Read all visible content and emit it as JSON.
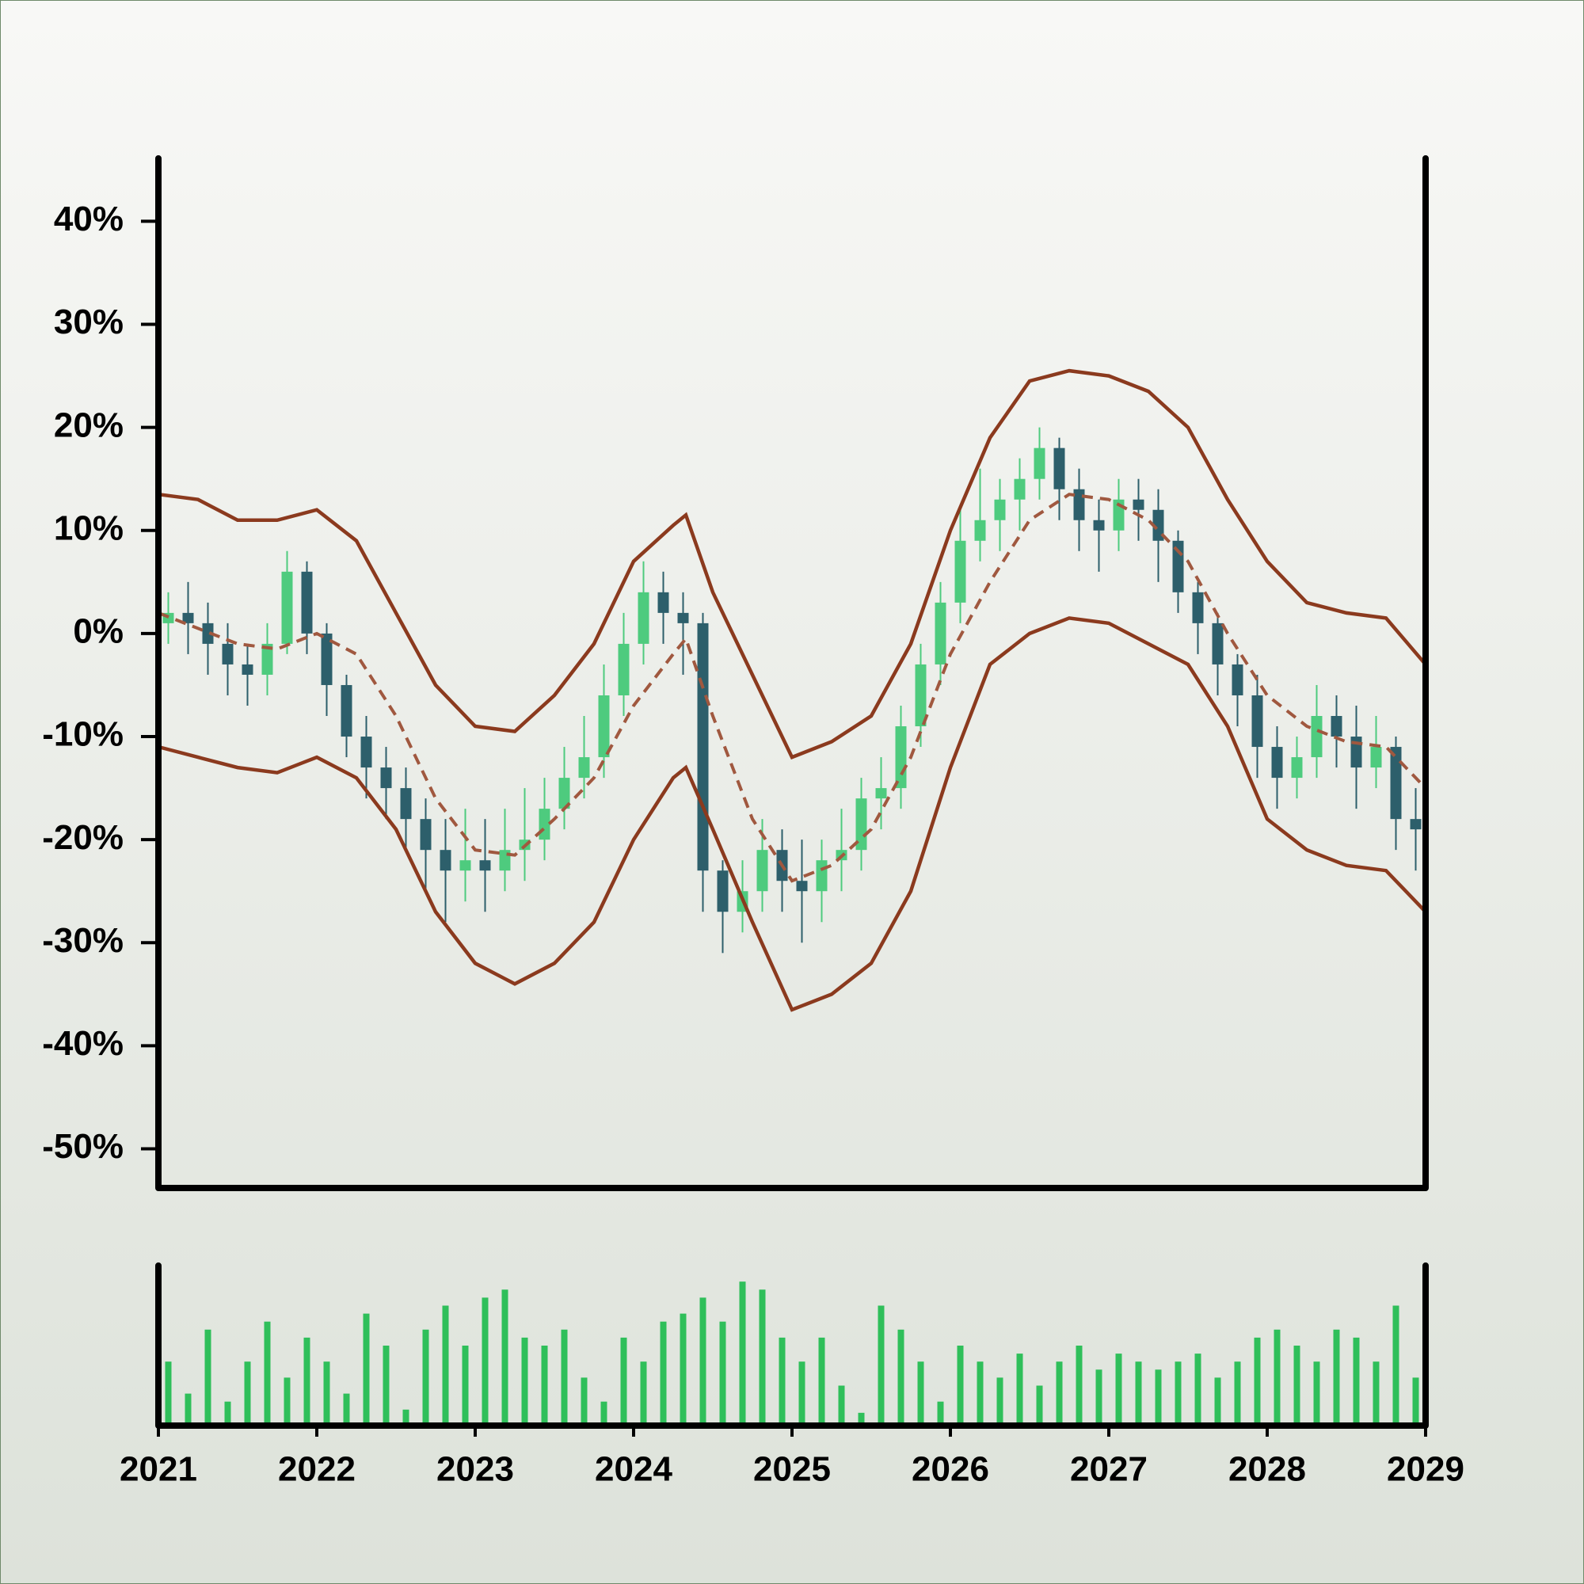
{
  "chart_data": [
    {
      "type": "candlestick",
      "x": [
        2021.0625,
        2021.1875,
        2021.3125,
        2021.4375,
        2021.5625,
        2021.6875,
        2021.8125,
        2021.9375,
        2022.0625,
        2022.1875,
        2022.3125,
        2022.4375,
        2022.5625,
        2022.6875,
        2022.8125,
        2022.9375,
        2023.0625,
        2023.1875,
        2023.3125,
        2023.4375,
        2023.5625,
        2023.6875,
        2023.8125,
        2023.9375,
        2024.0625,
        2024.1875,
        2024.3125,
        2024.4375,
        2024.5625,
        2024.6875,
        2024.8125,
        2024.9375,
        2025.0625,
        2025.1875,
        2025.3125,
        2025.4375,
        2025.5625,
        2025.6875,
        2025.8125,
        2025.9375,
        2026.0625,
        2026.1875,
        2026.3125,
        2026.4375,
        2026.5625,
        2026.6875,
        2026.8125,
        2026.9375,
        2027.0625,
        2027.1875,
        2027.3125,
        2027.4375,
        2027.5625,
        2027.6875,
        2027.8125,
        2027.9375,
        2028.0625,
        2028.1875,
        2028.3125,
        2028.4375,
        2028.5625,
        2028.6875,
        2028.8125,
        2028.9375
      ],
      "open": [
        1,
        2,
        1,
        -1,
        -3,
        -4,
        -1,
        6,
        0,
        -5,
        -10,
        -13,
        -15,
        -18,
        -21,
        -23,
        -22,
        -23,
        -21,
        -20,
        -17,
        -14,
        -12,
        -6,
        -1,
        4,
        2,
        1,
        -23,
        -27,
        -25,
        -21,
        -24,
        -25,
        -22,
        -21,
        -16,
        -15,
        -9,
        -3,
        3,
        9,
        11,
        13,
        15,
        18,
        14,
        11,
        10,
        13,
        12,
        9,
        4,
        1,
        -3,
        -6,
        -11,
        -14,
        -12,
        -8,
        -10,
        -13,
        -11,
        -18
      ],
      "high": [
        4,
        5,
        3,
        1,
        -1,
        1,
        8,
        7,
        1,
        -4,
        -8,
        -11,
        -13,
        -16,
        -18,
        -17,
        -18,
        -17,
        -15,
        -14,
        -11,
        -8,
        -3,
        2,
        7,
        6,
        4,
        2,
        -22,
        -22,
        -18,
        -19,
        -20,
        -20,
        -17,
        -14,
        -12,
        -7,
        -1,
        5,
        12,
        16,
        15,
        17,
        20,
        19,
        16,
        13,
        15,
        15,
        14,
        10,
        5,
        2,
        -2,
        -4,
        -9,
        -10,
        -5,
        -6,
        -7,
        -8,
        -10,
        -15
      ],
      "low": [
        -1,
        -2,
        -4,
        -6,
        -7,
        -6,
        -2,
        -2,
        -8,
        -12,
        -16,
        -18,
        -21,
        -25,
        -28,
        -26,
        -27,
        -25,
        -24,
        -22,
        -19,
        -16,
        -14,
        -8,
        -3,
        -1,
        -4,
        -27,
        -31,
        -29,
        -27,
        -27,
        -30,
        -28,
        -25,
        -23,
        -19,
        -17,
        -11,
        -5,
        1,
        7,
        8,
        10,
        13,
        11,
        8,
        6,
        8,
        9,
        5,
        2,
        -2,
        -6,
        -9,
        -14,
        -17,
        -16,
        -14,
        -13,
        -17,
        -15,
        -21,
        -23
      ],
      "close": [
        2,
        1,
        -1,
        -3,
        -4,
        -1,
        6,
        0,
        -5,
        -10,
        -13,
        -15,
        -18,
        -21,
        -23,
        -22,
        -23,
        -21,
        -20,
        -17,
        -14,
        -12,
        -6,
        -1,
        4,
        2,
        1,
        -23,
        -27,
        -25,
        -21,
        -24,
        -25,
        -22,
        -21,
        -16,
        -15,
        -9,
        -3,
        3,
        9,
        11,
        13,
        15,
        18,
        14,
        11,
        10,
        13,
        12,
        9,
        4,
        1,
        -3,
        -6,
        -11,
        -14,
        -12,
        -8,
        -10,
        -13,
        -11,
        -18,
        -19
      ],
      "up_color": "#4ecb7e",
      "down_color": "#2d5f6b",
      "lines": {
        "x": [
          2021.0,
          2021.25,
          2021.5,
          2021.75,
          2022.0,
          2022.25,
          2022.5,
          2022.75,
          2023.0,
          2023.25,
          2023.5,
          2023.75,
          2024.0,
          2024.25,
          2024.33,
          2024.5,
          2024.75,
          2025.0,
          2025.25,
          2025.5,
          2025.75,
          2026.0,
          2026.25,
          2026.5,
          2026.75,
          2027.0,
          2027.25,
          2027.5,
          2027.75,
          2028.0,
          2028.25,
          2028.5,
          2028.75,
          2029.0
        ],
        "series": [
          {
            "color": "#8b3a1e",
            "style": "solid",
            "values": [
              13.5,
              13,
              11,
              11,
              12,
              9,
              2,
              -5,
              -9,
              -9.5,
              -6,
              -1,
              7,
              10.5,
              11.5,
              4,
              -4,
              -12,
              -10.5,
              -8,
              -1,
              10,
              19,
              24.5,
              25.5,
              25,
              23.5,
              20,
              13,
              7,
              3,
              2,
              1.5,
              -3
            ]
          },
          {
            "color": "#a0583f",
            "style": "dashed",
            "values": [
              2,
              0.5,
              -1,
              -1.5,
              0,
              -2,
              -8,
              -16,
              -21,
              -21.5,
              -18,
              -14,
              -7,
              -2,
              -0.5,
              -8,
              -18,
              -24,
              -22.5,
              -19,
              -12,
              -2,
              5,
              11,
              13.5,
              13,
              11,
              7,
              0,
              -6,
              -9,
              -10.5,
              -11,
              -15
            ]
          },
          {
            "color": "#8b3a1e",
            "style": "solid",
            "values": [
              -11,
              -12,
              -13,
              -13.5,
              -12,
              -14,
              -19,
              -27,
              -32,
              -34,
              -32,
              -28,
              -20,
              -14,
              -13,
              -19,
              -28,
              -36.5,
              -35,
              -32,
              -25,
              -13,
              -3,
              0,
              1.5,
              1,
              -1,
              -3,
              -9,
              -18,
              -21,
              -22.5,
              -23,
              -27
            ]
          }
        ]
      },
      "xlim": [
        2021,
        2029
      ],
      "ylim": [
        -53.8,
        46.1
      ],
      "yticks": [
        {
          "value": 40,
          "label": "40%"
        },
        {
          "value": 30,
          "label": "30%"
        },
        {
          "value": 20,
          "label": "20%"
        },
        {
          "value": 10,
          "label": "10%"
        },
        {
          "value": 0,
          "label": "0%"
        },
        {
          "value": -10,
          "label": "-10%"
        },
        {
          "value": -20,
          "label": "-20%"
        },
        {
          "value": -30,
          "label": "-30%"
        },
        {
          "value": -40,
          "label": "-40%"
        },
        {
          "value": -50,
          "label": "-50%"
        }
      ]
    },
    {
      "type": "bar",
      "color": "#2fbf5a",
      "x": [
        2021.0625,
        2021.1875,
        2021.3125,
        2021.4375,
        2021.5625,
        2021.6875,
        2021.8125,
        2021.9375,
        2022.0625,
        2022.1875,
        2022.3125,
        2022.4375,
        2022.5625,
        2022.6875,
        2022.8125,
        2022.9375,
        2023.0625,
        2023.1875,
        2023.3125,
        2023.4375,
        2023.5625,
        2023.6875,
        2023.8125,
        2023.9375,
        2024.0625,
        2024.1875,
        2024.3125,
        2024.4375,
        2024.5625,
        2024.6875,
        2024.8125,
        2024.9375,
        2025.0625,
        2025.1875,
        2025.3125,
        2025.4375,
        2025.5625,
        2025.6875,
        2025.8125,
        2025.9375,
        2026.0625,
        2026.1875,
        2026.3125,
        2026.4375,
        2026.5625,
        2026.6875,
        2026.8125,
        2026.9375,
        2027.0625,
        2027.1875,
        2027.3125,
        2027.4375,
        2027.5625,
        2027.6875,
        2027.8125,
        2027.9375,
        2028.0625,
        2028.1875,
        2028.3125,
        2028.4375,
        2028.5625,
        2028.6875,
        2028.8125,
        2028.9375
      ],
      "values": [
        40,
        20,
        60,
        15,
        40,
        65,
        30,
        55,
        40,
        20,
        70,
        50,
        10,
        60,
        75,
        50,
        80,
        85,
        55,
        50,
        60,
        30,
        15,
        55,
        40,
        65,
        70,
        80,
        65,
        90,
        85,
        55,
        40,
        55,
        25,
        8,
        75,
        60,
        40,
        15,
        50,
        40,
        30,
        45,
        25,
        40,
        50,
        35,
        45,
        40,
        35,
        40,
        45,
        30,
        40,
        55,
        60,
        50,
        40,
        60,
        55,
        40,
        75,
        30
      ],
      "xlim": [
        2021,
        2029
      ],
      "ylim": [
        0,
        100
      ],
      "xticks": [
        2021,
        2022,
        2023,
        2024,
        2025,
        2026,
        2027,
        2028,
        2029
      ]
    }
  ]
}
